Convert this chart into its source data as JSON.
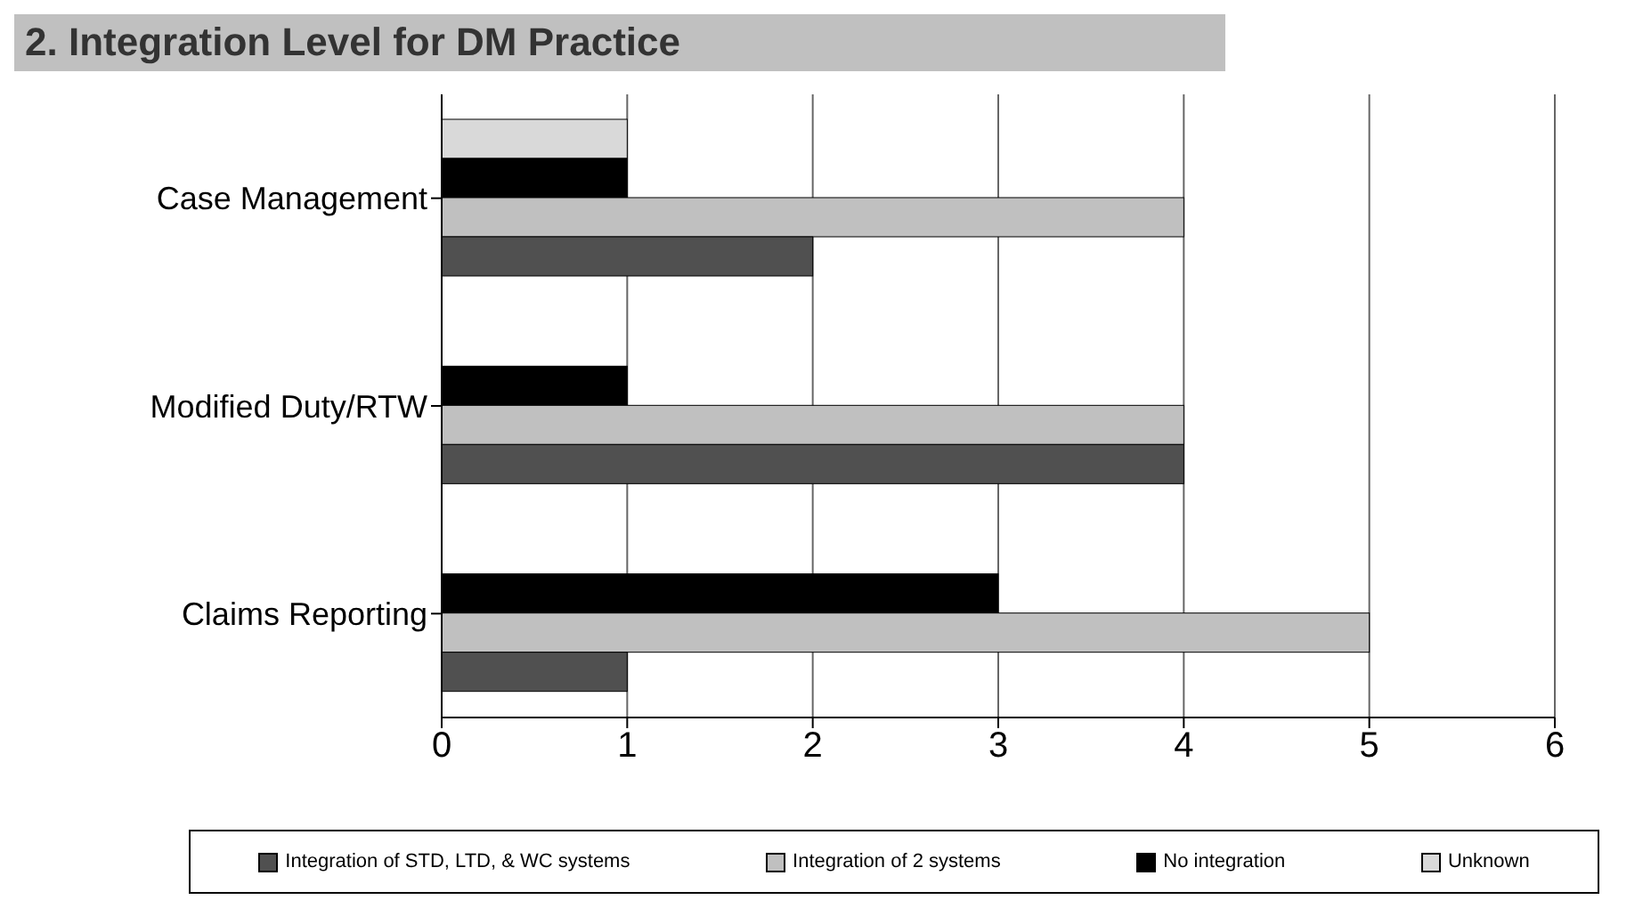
{
  "chart_data": {
    "type": "bar",
    "orientation": "horizontal",
    "title": "2.   Integration Level for DM Practice",
    "categories": [
      "Case Management",
      "Modified Duty/RTW",
      "Claims Reporting"
    ],
    "series": [
      {
        "name": "Unknown",
        "color": "#d9d9d9",
        "values": [
          1,
          null,
          null
        ]
      },
      {
        "name": "No integration",
        "color": "#000000",
        "values": [
          1,
          1,
          3
        ]
      },
      {
        "name": "Integration of 2 systems",
        "color": "#c0c0c0",
        "values": [
          4,
          4,
          5
        ]
      },
      {
        "name": "Integration of STD, LTD, & WC systems",
        "color": "#505050",
        "values": [
          2,
          4,
          1
        ]
      }
    ],
    "xlim": [
      0,
      6
    ],
    "xticks": [
      0,
      1,
      2,
      3,
      4,
      5,
      6
    ],
    "grid": "x",
    "legend": "bottom"
  }
}
